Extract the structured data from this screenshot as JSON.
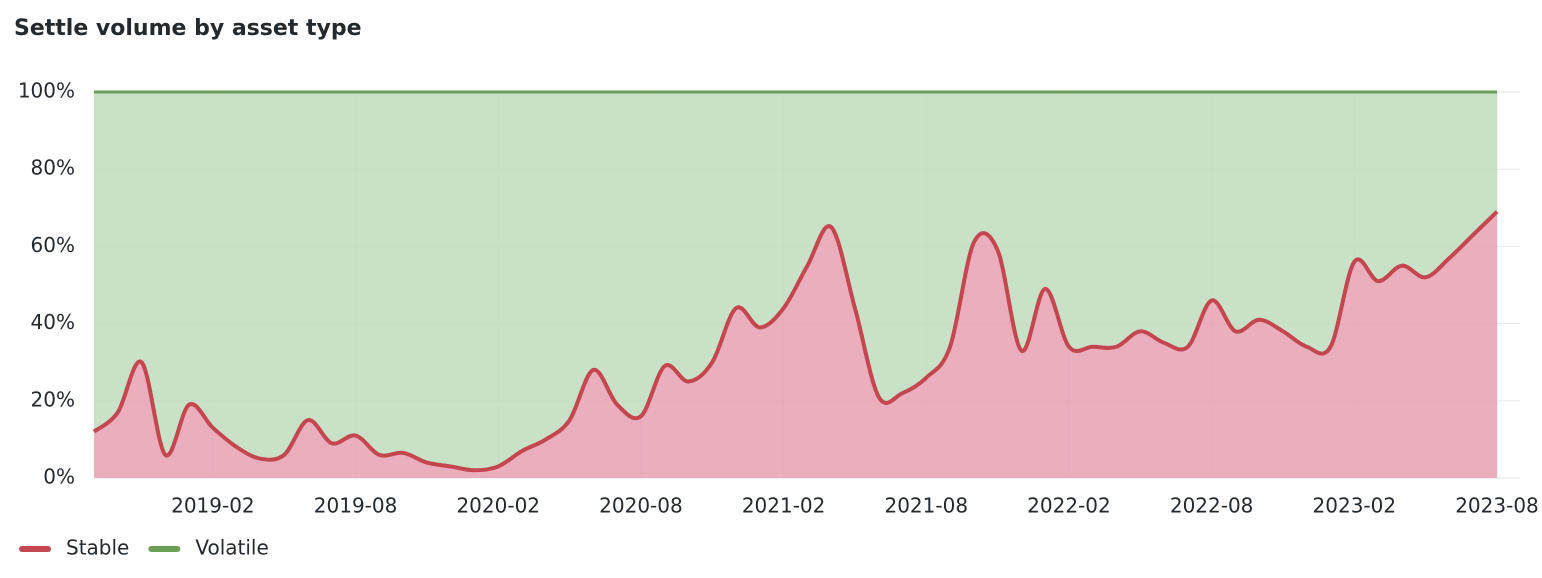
{
  "chart_data": {
    "type": "stacked-area-percent",
    "title": "Settle volume by asset type",
    "x": [
      "2018-09",
      "2018-10",
      "2018-11",
      "2018-12",
      "2019-01",
      "2019-02",
      "2019-03",
      "2019-04",
      "2019-05",
      "2019-06",
      "2019-07",
      "2019-08",
      "2019-09",
      "2019-10",
      "2019-11",
      "2019-12",
      "2020-01",
      "2020-02",
      "2020-03",
      "2020-04",
      "2020-05",
      "2020-06",
      "2020-07",
      "2020-08",
      "2020-09",
      "2020-10",
      "2020-11",
      "2020-12",
      "2021-01",
      "2021-02",
      "2021-03",
      "2021-04",
      "2021-05",
      "2021-06",
      "2021-07",
      "2021-08",
      "2021-09",
      "2021-10",
      "2021-11",
      "2021-12",
      "2022-01",
      "2022-02",
      "2022-03",
      "2022-04",
      "2022-05",
      "2022-06",
      "2022-07",
      "2022-08",
      "2022-09",
      "2022-10",
      "2022-11",
      "2022-12",
      "2023-01",
      "2023-02",
      "2023-03",
      "2023-04",
      "2023-05",
      "2023-06",
      "2023-07",
      "2023-08"
    ],
    "series": [
      {
        "name": "Stable",
        "color": "#c4464e",
        "fill": "#e8a0b2",
        "values": [
          12,
          17,
          30,
          6,
          19,
          13,
          8,
          5,
          6,
          15,
          9,
          11,
          6,
          6.5,
          4,
          3,
          2,
          3,
          7,
          10,
          15,
          28,
          19,
          16,
          29,
          25,
          30,
          44,
          39,
          44,
          55,
          65,
          44,
          21,
          22,
          26,
          34,
          61,
          59,
          33,
          49,
          34,
          34,
          34,
          38,
          35,
          34,
          46,
          38,
          41,
          38,
          34,
          34,
          56,
          51,
          55,
          52,
          57,
          63,
          69
        ]
      },
      {
        "name": "Volatile",
        "color": "#6a9f58",
        "fill": "#bfdcbc",
        "values": [
          88,
          83,
          70,
          94,
          81,
          87,
          92,
          95,
          94,
          85,
          91,
          89,
          94,
          93.5,
          96,
          97,
          98,
          97,
          93,
          90,
          85,
          72,
          81,
          84,
          71,
          75,
          70,
          56,
          61,
          56,
          45,
          35,
          56,
          79,
          78,
          74,
          66,
          39,
          41,
          67,
          51,
          66,
          66,
          66,
          62,
          65,
          66,
          54,
          62,
          59,
          62,
          66,
          66,
          44,
          49,
          45,
          48,
          43,
          37,
          31
        ]
      }
    ],
    "xticks": [
      "2019-02",
      "2019-08",
      "2020-02",
      "2020-08",
      "2021-02",
      "2021-08",
      "2022-02",
      "2022-08",
      "2023-02",
      "2023-08"
    ],
    "ylim": [
      0,
      100
    ],
    "yticks": [
      {
        "value": 0,
        "label": "0%"
      },
      {
        "value": 20,
        "label": "20%"
      },
      {
        "value": 40,
        "label": "40%"
      },
      {
        "value": 60,
        "label": "60%"
      },
      {
        "value": 80,
        "label": "80%"
      },
      {
        "value": 100,
        "label": "100%"
      }
    ],
    "grid": true,
    "legend": "bottom-left"
  }
}
